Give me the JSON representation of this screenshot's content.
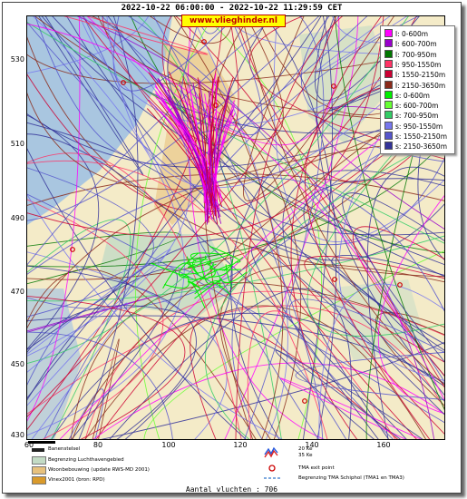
{
  "header": {
    "title": "2022-10-22 06:00:00 - 2022-10-22 11:29:59 CET",
    "brand": "www.vlieghinder.nl"
  },
  "axes": {
    "y_ticks": [
      "530",
      "510",
      "490",
      "470",
      "450",
      "430"
    ],
    "x_ticks": [
      "60",
      "80",
      "100",
      "120",
      "140",
      "160"
    ]
  },
  "legend": {
    "items": [
      {
        "label": "l: 0-600m",
        "color": "#ff00ff"
      },
      {
        "label": "l: 600-700m",
        "color": "#9900cc"
      },
      {
        "label": "l: 700-950m",
        "color": "#007700"
      },
      {
        "label": "l: 950-1550m",
        "color": "#ff3366"
      },
      {
        "label": "l: 1550-2150m",
        "color": "#cc0033"
      },
      {
        "label": "l: 2150-3650m",
        "color": "#8b2a1a"
      },
      {
        "label": "s: 0-600m",
        "color": "#00ee00"
      },
      {
        "label": "s: 600-700m",
        "color": "#66ff33"
      },
      {
        "label": "s: 700-950m",
        "color": "#33cc66"
      },
      {
        "label": "s: 950-1550m",
        "color": "#7777ee"
      },
      {
        "label": "s: 1550-2150m",
        "color": "#5555cc"
      },
      {
        "label": "s: 2150-3650m",
        "color": "#333399"
      }
    ]
  },
  "footer": {
    "runway": "Banenstelsel",
    "airport_area": "Begrenzing Luchthavengebied",
    "housing": "Woonbebouwing (update RWS-MD 2001)",
    "vinex": "Vinex2001 (bron: RPD)",
    "ke35": "35 Ke",
    "ke20": "20 Ke",
    "tma_exit": "TMA exit point",
    "tma_boundary": "Begrenzing TMA Schiphol  (TMA1 en TMA3)",
    "flight_count": "Aantal vluchten : 706"
  },
  "colors": {
    "land": "#f4ebc8",
    "water": "#a9c6e0",
    "green_area": "#c3dbc5",
    "housing": "#e7c17d"
  }
}
